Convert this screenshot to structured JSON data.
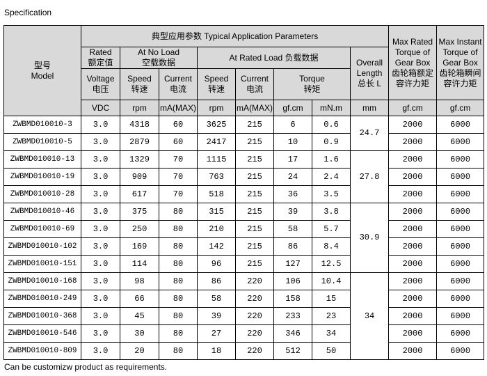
{
  "title": "Specification",
  "footer": "Can be customizw product as requirements.",
  "header": {
    "model": "型号",
    "model_en": "Model",
    "typical": "典型应用参数 Typical Application Parameters",
    "rated": "Rated",
    "rated_cn": "额定值",
    "noload": "At No Load",
    "noload_cn": "空载数据",
    "ratedload": "At Rated Load 负载数据",
    "overall": "Overall",
    "overall2": "Length",
    "overall3": "总长 L",
    "maxrated": [
      "Max Rated",
      "Torque of",
      "Gear Box",
      "齿轮箱额定",
      "容许力矩"
    ],
    "maxinstant": [
      "Max Instant",
      "Torque of",
      "Gear Box",
      "齿轮箱瞬间",
      "容许力矩"
    ],
    "voltage": "Voltage",
    "voltage_cn": "电压",
    "speed": "Speed",
    "speed_cn": "转速",
    "current": "Current",
    "current_cn": "电流",
    "torque": "Torque",
    "torque_cn": "转矩",
    "units": [
      "VDC",
      "rpm",
      "mA(MAX)",
      "rpm",
      "mA(MAX)",
      "gf.cm",
      "mN.m",
      "mm",
      "gf.cm",
      "gf.cm"
    ]
  },
  "rows": [
    [
      "ZWBMD010010-3",
      "3.0",
      "4318",
      "60",
      "3625",
      "215",
      "6",
      "0.6",
      "2000",
      "6000"
    ],
    [
      "ZWBMD010010-5",
      "3.0",
      "2879",
      "60",
      "2417",
      "215",
      "10",
      "0.9",
      "2000",
      "6000"
    ],
    [
      "ZWBMD010010-13",
      "3.0",
      "1329",
      "70",
      "1115",
      "215",
      "17",
      "1.6",
      "2000",
      "6000"
    ],
    [
      "ZWBMD010010-19",
      "3.0",
      "909",
      "70",
      "763",
      "215",
      "24",
      "2.4",
      "2000",
      "6000"
    ],
    [
      "ZWBMD010010-28",
      "3.0",
      "617",
      "70",
      "518",
      "215",
      "36",
      "3.5",
      "2000",
      "6000"
    ],
    [
      "ZWBMD010010-46",
      "3.0",
      "375",
      "80",
      "315",
      "215",
      "39",
      "3.8",
      "2000",
      "6000"
    ],
    [
      "ZWBMD010010-69",
      "3.0",
      "250",
      "80",
      "210",
      "215",
      "58",
      "5.7",
      "2000",
      "6000"
    ],
    [
      "ZWBMD010010-102",
      "3.0",
      "169",
      "80",
      "142",
      "215",
      "86",
      "8.4",
      "2000",
      "6000"
    ],
    [
      "ZWBMD010010-151",
      "3.0",
      "114",
      "80",
      "96",
      "215",
      "127",
      "12.5",
      "2000",
      "6000"
    ],
    [
      "ZWBMD010010-168",
      "3.0",
      "98",
      "80",
      "86",
      "220",
      "106",
      "10.4",
      "2000",
      "6000"
    ],
    [
      "ZWBMD010010-249",
      "3.0",
      "66",
      "80",
      "58",
      "220",
      "158",
      "15",
      "2000",
      "6000"
    ],
    [
      "ZWBMD010010-368",
      "3.0",
      "45",
      "80",
      "39",
      "220",
      "233",
      "23",
      "2000",
      "6000"
    ],
    [
      "ZWBMD010010-546",
      "3.0",
      "30",
      "80",
      "27",
      "220",
      "346",
      "34",
      "2000",
      "6000"
    ],
    [
      "ZWBMD010010-809",
      "3.0",
      "20",
      "80",
      "18",
      "220",
      "512",
      "50",
      "2000",
      "6000"
    ]
  ],
  "lengths": [
    "24.7",
    "27.8",
    "30.9",
    "34"
  ]
}
